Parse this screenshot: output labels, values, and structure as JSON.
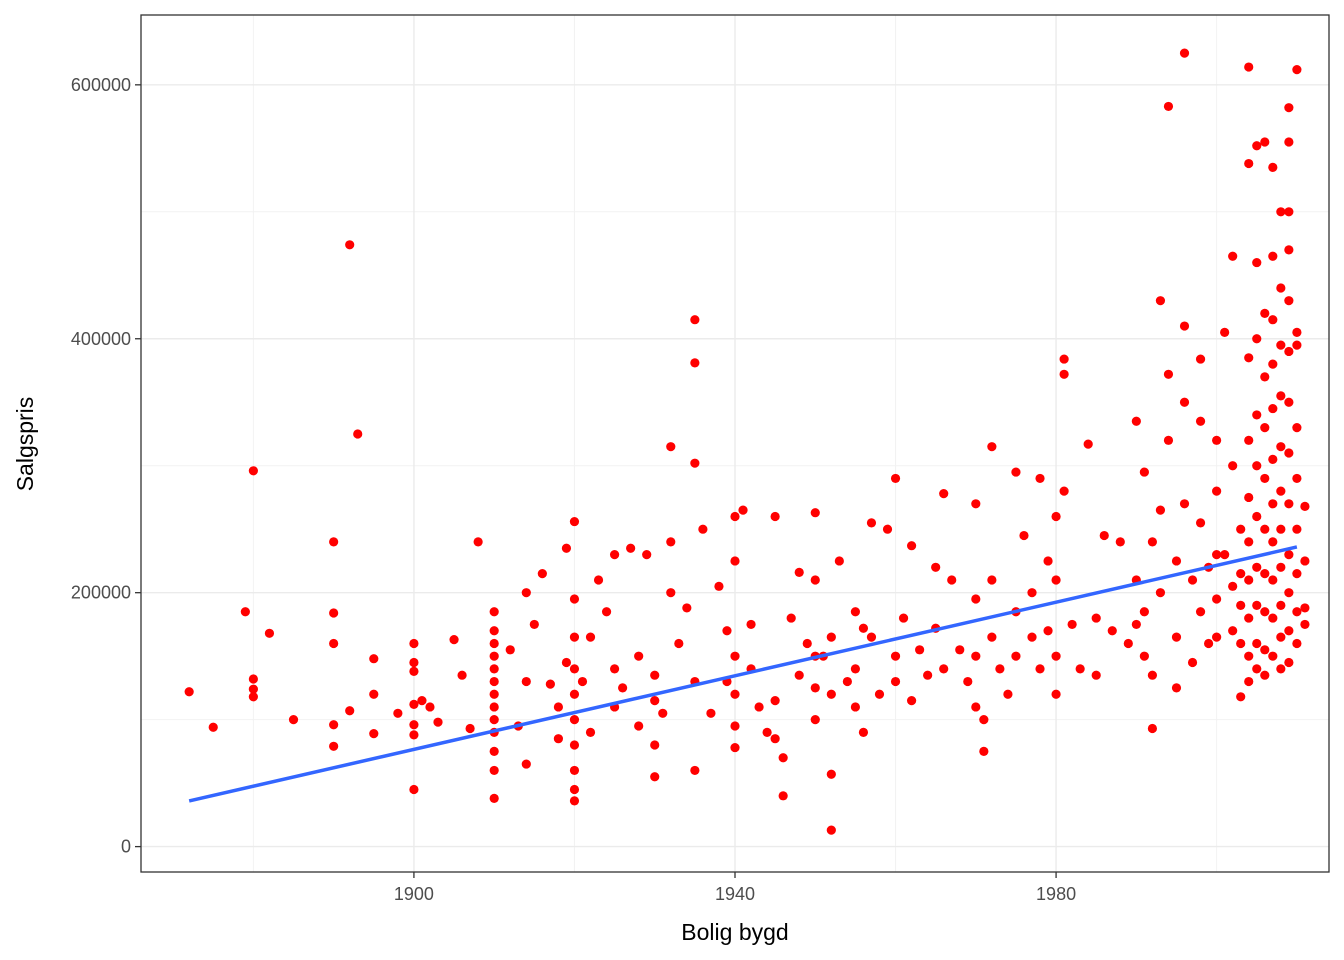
{
  "chart_data": {
    "type": "scatter",
    "title": "",
    "xlabel": "Bolig bygd",
    "ylabel": "Salgspris",
    "xlim": [
      1866,
      2014
    ],
    "ylim": [
      -20000,
      655000
    ],
    "x_ticks": [
      1900,
      1940,
      1980
    ],
    "y_ticks": [
      0,
      200000,
      400000,
      600000
    ],
    "x_tick_labels": [
      "1900",
      "1940",
      "1980"
    ],
    "y_tick_labels": [
      "0",
      "200000",
      "400000",
      "600000"
    ],
    "grid": true,
    "legend": "none",
    "point_color": "#FF0000",
    "line_color": "#3366FF",
    "trend_line": {
      "type": "linear",
      "x": [
        1872,
        2010
      ],
      "y": [
        36000,
        236000
      ]
    },
    "points": [
      [
        1872,
        122000
      ],
      [
        1875,
        94000
      ],
      [
        1880,
        296000
      ],
      [
        1879,
        185000
      ],
      [
        1880,
        132000
      ],
      [
        1880,
        124000
      ],
      [
        1880,
        118000
      ],
      [
        1882,
        168000
      ],
      [
        1885,
        100000
      ],
      [
        1890,
        240000
      ],
      [
        1890,
        184000
      ],
      [
        1890,
        160000
      ],
      [
        1890,
        96000
      ],
      [
        1890,
        79000
      ],
      [
        1892,
        474000
      ],
      [
        1893,
        325000
      ],
      [
        1892,
        107000
      ],
      [
        1895,
        148000
      ],
      [
        1895,
        120000
      ],
      [
        1895,
        89000
      ],
      [
        1898,
        105000
      ],
      [
        1900,
        160000
      ],
      [
        1900,
        145000
      ],
      [
        1900,
        138000
      ],
      [
        1900,
        112000
      ],
      [
        1900,
        96000
      ],
      [
        1900,
        88000
      ],
      [
        1900,
        45000
      ],
      [
        1901,
        115000
      ],
      [
        1902,
        110000
      ],
      [
        1903,
        98000
      ],
      [
        1905,
        163000
      ],
      [
        1906,
        135000
      ],
      [
        1907,
        93000
      ],
      [
        1908,
        240000
      ],
      [
        1910,
        185000
      ],
      [
        1910,
        170000
      ],
      [
        1910,
        160000
      ],
      [
        1910,
        150000
      ],
      [
        1910,
        140000
      ],
      [
        1910,
        130000
      ],
      [
        1910,
        120000
      ],
      [
        1910,
        110000
      ],
      [
        1910,
        100000
      ],
      [
        1910,
        90000
      ],
      [
        1910,
        75000
      ],
      [
        1910,
        60000
      ],
      [
        1910,
        38000
      ],
      [
        1912,
        155000
      ],
      [
        1913,
        95000
      ],
      [
        1914,
        200000
      ],
      [
        1914,
        130000
      ],
      [
        1914,
        65000
      ],
      [
        1915,
        175000
      ],
      [
        1916,
        215000
      ],
      [
        1917,
        128000
      ],
      [
        1918,
        110000
      ],
      [
        1918,
        85000
      ],
      [
        1919,
        235000
      ],
      [
        1919,
        145000
      ],
      [
        1920,
        256000
      ],
      [
        1920,
        195000
      ],
      [
        1920,
        165000
      ],
      [
        1920,
        140000
      ],
      [
        1920,
        120000
      ],
      [
        1920,
        100000
      ],
      [
        1920,
        80000
      ],
      [
        1920,
        60000
      ],
      [
        1920,
        45000
      ],
      [
        1920,
        36000
      ],
      [
        1921,
        130000
      ],
      [
        1922,
        165000
      ],
      [
        1922,
        90000
      ],
      [
        1923,
        210000
      ],
      [
        1924,
        185000
      ],
      [
        1925,
        230000
      ],
      [
        1925,
        140000
      ],
      [
        1925,
        110000
      ],
      [
        1926,
        125000
      ],
      [
        1927,
        235000
      ],
      [
        1928,
        150000
      ],
      [
        1928,
        95000
      ],
      [
        1929,
        230000
      ],
      [
        1930,
        135000
      ],
      [
        1930,
        115000
      ],
      [
        1930,
        80000
      ],
      [
        1930,
        55000
      ],
      [
        1931,
        105000
      ],
      [
        1932,
        315000
      ],
      [
        1932,
        240000
      ],
      [
        1932,
        200000
      ],
      [
        1933,
        160000
      ],
      [
        1934,
        188000
      ],
      [
        1935,
        415000
      ],
      [
        1935,
        381000
      ],
      [
        1935,
        302000
      ],
      [
        1935,
        130000
      ],
      [
        1935,
        60000
      ],
      [
        1936,
        250000
      ],
      [
        1937,
        105000
      ],
      [
        1938,
        205000
      ],
      [
        1939,
        170000
      ],
      [
        1939,
        130000
      ],
      [
        1940,
        260000
      ],
      [
        1940,
        225000
      ],
      [
        1940,
        150000
      ],
      [
        1940,
        120000
      ],
      [
        1940,
        95000
      ],
      [
        1940,
        78000
      ],
      [
        1941,
        265000
      ],
      [
        1942,
        175000
      ],
      [
        1942,
        140000
      ],
      [
        1943,
        110000
      ],
      [
        1944,
        90000
      ],
      [
        1945,
        260000
      ],
      [
        1945,
        115000
      ],
      [
        1945,
        85000
      ],
      [
        1946,
        70000
      ],
      [
        1946,
        40000
      ],
      [
        1947,
        180000
      ],
      [
        1948,
        216000
      ],
      [
        1948,
        135000
      ],
      [
        1949,
        160000
      ],
      [
        1950,
        263000
      ],
      [
        1950,
        210000
      ],
      [
        1950,
        150000
      ],
      [
        1950,
        125000
      ],
      [
        1950,
        100000
      ],
      [
        1951,
        150000
      ],
      [
        1952,
        165000
      ],
      [
        1952,
        120000
      ],
      [
        1952,
        57000
      ],
      [
        1952,
        13000
      ],
      [
        1953,
        225000
      ],
      [
        1954,
        130000
      ],
      [
        1955,
        185000
      ],
      [
        1955,
        140000
      ],
      [
        1955,
        110000
      ],
      [
        1956,
        172000
      ],
      [
        1956,
        90000
      ],
      [
        1957,
        255000
      ],
      [
        1957,
        165000
      ],
      [
        1958,
        120000
      ],
      [
        1959,
        250000
      ],
      [
        1960,
        290000
      ],
      [
        1960,
        150000
      ],
      [
        1960,
        130000
      ],
      [
        1961,
        180000
      ],
      [
        1962,
        237000
      ],
      [
        1962,
        115000
      ],
      [
        1963,
        155000
      ],
      [
        1964,
        135000
      ],
      [
        1965,
        220000
      ],
      [
        1965,
        172000
      ],
      [
        1966,
        278000
      ],
      [
        1966,
        140000
      ],
      [
        1967,
        210000
      ],
      [
        1968,
        155000
      ],
      [
        1969,
        130000
      ],
      [
        1970,
        270000
      ],
      [
        1970,
        195000
      ],
      [
        1970,
        150000
      ],
      [
        1970,
        110000
      ],
      [
        1971,
        75000
      ],
      [
        1971,
        100000
      ],
      [
        1972,
        315000
      ],
      [
        1972,
        210000
      ],
      [
        1972,
        165000
      ],
      [
        1973,
        140000
      ],
      [
        1974,
        120000
      ],
      [
        1975,
        295000
      ],
      [
        1975,
        185000
      ],
      [
        1975,
        150000
      ],
      [
        1976,
        245000
      ],
      [
        1977,
        200000
      ],
      [
        1977,
        165000
      ],
      [
        1978,
        290000
      ],
      [
        1978,
        140000
      ],
      [
        1979,
        225000
      ],
      [
        1979,
        170000
      ],
      [
        1980,
        260000
      ],
      [
        1980,
        210000
      ],
      [
        1980,
        150000
      ],
      [
        1980,
        120000
      ],
      [
        1981,
        384000
      ],
      [
        1981,
        372000
      ],
      [
        1981,
        280000
      ],
      [
        1982,
        175000
      ],
      [
        1983,
        140000
      ],
      [
        1984,
        317000
      ],
      [
        1985,
        180000
      ],
      [
        1985,
        135000
      ],
      [
        1986,
        245000
      ],
      [
        1987,
        170000
      ],
      [
        1988,
        240000
      ],
      [
        1989,
        160000
      ],
      [
        1990,
        335000
      ],
      [
        1990,
        210000
      ],
      [
        1990,
        175000
      ],
      [
        1991,
        295000
      ],
      [
        1991,
        185000
      ],
      [
        1991,
        150000
      ],
      [
        1992,
        240000
      ],
      [
        1992,
        135000
      ],
      [
        1992,
        93000
      ],
      [
        1993,
        430000
      ],
      [
        1993,
        265000
      ],
      [
        1993,
        200000
      ],
      [
        1994,
        583000
      ],
      [
        1994,
        372000
      ],
      [
        1994,
        320000
      ],
      [
        1995,
        225000
      ],
      [
        1995,
        165000
      ],
      [
        1995,
        125000
      ],
      [
        1996,
        625000
      ],
      [
        1996,
        410000
      ],
      [
        1996,
        350000
      ],
      [
        1996,
        270000
      ],
      [
        1997,
        210000
      ],
      [
        1997,
        145000
      ],
      [
        1998,
        384000
      ],
      [
        1998,
        335000
      ],
      [
        1998,
        255000
      ],
      [
        1998,
        185000
      ],
      [
        1999,
        220000
      ],
      [
        1999,
        160000
      ],
      [
        2000,
        320000
      ],
      [
        2000,
        280000
      ],
      [
        2000,
        230000
      ],
      [
        2000,
        195000
      ],
      [
        2000,
        165000
      ],
      [
        2001,
        405000
      ],
      [
        2001,
        230000
      ],
      [
        2002,
        465000
      ],
      [
        2002,
        300000
      ],
      [
        2002,
        205000
      ],
      [
        2002,
        170000
      ],
      [
        2003,
        250000
      ],
      [
        2003,
        215000
      ],
      [
        2003,
        190000
      ],
      [
        2003,
        160000
      ],
      [
        2003,
        118000
      ],
      [
        2004,
        614000
      ],
      [
        2004,
        538000
      ],
      [
        2004,
        385000
      ],
      [
        2004,
        320000
      ],
      [
        2004,
        275000
      ],
      [
        2004,
        240000
      ],
      [
        2004,
        210000
      ],
      [
        2004,
        180000
      ],
      [
        2004,
        150000
      ],
      [
        2004,
        130000
      ],
      [
        2005,
        552000
      ],
      [
        2005,
        460000
      ],
      [
        2005,
        400000
      ],
      [
        2005,
        340000
      ],
      [
        2005,
        300000
      ],
      [
        2005,
        260000
      ],
      [
        2005,
        220000
      ],
      [
        2005,
        190000
      ],
      [
        2005,
        160000
      ],
      [
        2005,
        140000
      ],
      [
        2006,
        555000
      ],
      [
        2006,
        420000
      ],
      [
        2006,
        370000
      ],
      [
        2006,
        330000
      ],
      [
        2006,
        290000
      ],
      [
        2006,
        250000
      ],
      [
        2006,
        215000
      ],
      [
        2006,
        185000
      ],
      [
        2006,
        155000
      ],
      [
        2006,
        135000
      ],
      [
        2007,
        535000
      ],
      [
        2007,
        465000
      ],
      [
        2007,
        415000
      ],
      [
        2007,
        380000
      ],
      [
        2007,
        345000
      ],
      [
        2007,
        305000
      ],
      [
        2007,
        270000
      ],
      [
        2007,
        240000
      ],
      [
        2007,
        210000
      ],
      [
        2007,
        180000
      ],
      [
        2007,
        150000
      ],
      [
        2008,
        500000
      ],
      [
        2008,
        440000
      ],
      [
        2008,
        395000
      ],
      [
        2008,
        355000
      ],
      [
        2008,
        315000
      ],
      [
        2008,
        280000
      ],
      [
        2008,
        250000
      ],
      [
        2008,
        220000
      ],
      [
        2008,
        190000
      ],
      [
        2008,
        165000
      ],
      [
        2008,
        140000
      ],
      [
        2009,
        582000
      ],
      [
        2009,
        555000
      ],
      [
        2009,
        500000
      ],
      [
        2009,
        470000
      ],
      [
        2009,
        430000
      ],
      [
        2009,
        390000
      ],
      [
        2009,
        350000
      ],
      [
        2009,
        310000
      ],
      [
        2009,
        270000
      ],
      [
        2009,
        230000
      ],
      [
        2009,
        200000
      ],
      [
        2009,
        170000
      ],
      [
        2009,
        145000
      ],
      [
        2010,
        612000
      ],
      [
        2010,
        405000
      ],
      [
        2010,
        395000
      ],
      [
        2010,
        330000
      ],
      [
        2010,
        290000
      ],
      [
        2010,
        250000
      ],
      [
        2010,
        215000
      ],
      [
        2010,
        185000
      ],
      [
        2010,
        160000
      ],
      [
        2011,
        268000
      ],
      [
        2011,
        225000
      ],
      [
        2011,
        188000
      ],
      [
        2011,
        175000
      ]
    ]
  }
}
